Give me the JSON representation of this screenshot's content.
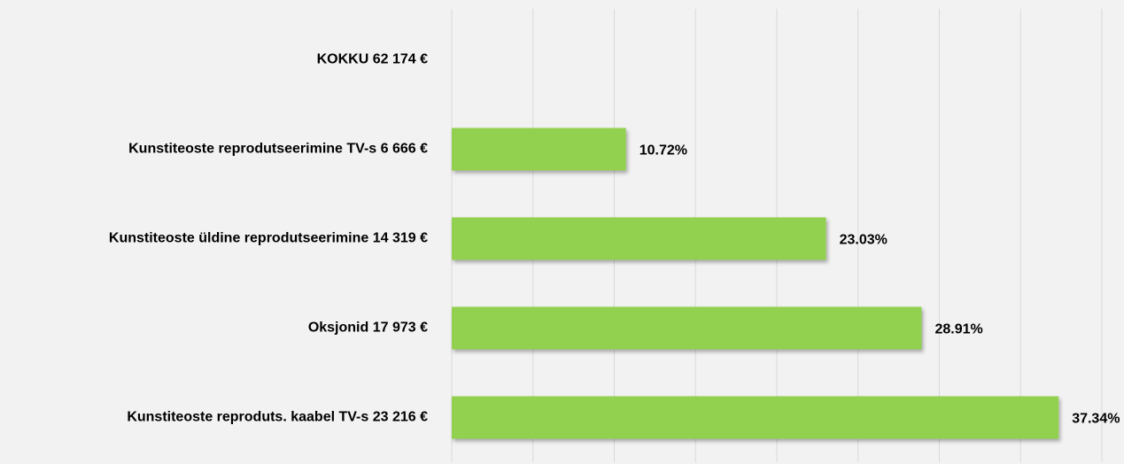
{
  "chart_data": {
    "type": "barh",
    "categories": [
      "KOKKU 62 174 €",
      "Kunstiteoste reprodutseerimine TV-s 6 666 €",
      "Kunstiteoste üldine reprodutseerimine 14 319 €",
      "Oksjonid 17 973 €",
      "Kunstiteoste reproduts. kaabel TV-s 23 216 €"
    ],
    "values": [
      null,
      10.72,
      23.03,
      28.91,
      37.34
    ],
    "value_labels": [
      null,
      "10.72%",
      "23.03%",
      "28.91%",
      "37.34%"
    ],
    "color": "#92d050",
    "xlim": [
      0,
      40
    ],
    "xticks": [
      0,
      5,
      10,
      15,
      20,
      25,
      30,
      35,
      40
    ],
    "grid": true
  }
}
